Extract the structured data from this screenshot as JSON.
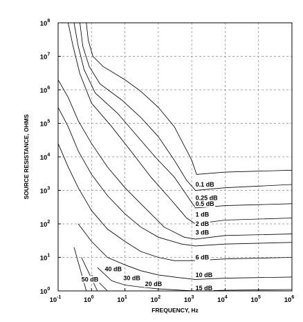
{
  "chart_data": {
    "type": "line",
    "title": "",
    "xlabel": "FREQUENCY, Hz",
    "ylabel": "SOURCE RESISTANCE, OHMS",
    "x_scale": "log",
    "y_scale": "log",
    "xlim": [
      0.1,
      1000000
    ],
    "ylim": [
      1,
      100000000
    ],
    "grid": true,
    "x_ticks": [
      {
        "base": "10",
        "exp": "-1"
      },
      {
        "base": "10",
        "exp": "0"
      },
      {
        "base": "10",
        "exp": "1"
      },
      {
        "base": "10",
        "exp": "2"
      },
      {
        "base": "10",
        "exp": "3"
      },
      {
        "base": "10",
        "exp": "4"
      },
      {
        "base": "10",
        "exp": "5"
      },
      {
        "base": "10",
        "exp": "6"
      }
    ],
    "y_ticks": [
      {
        "base": "10",
        "exp": "0"
      },
      {
        "base": "10",
        "exp": "1"
      },
      {
        "base": "10",
        "exp": "2"
      },
      {
        "base": "10",
        "exp": "3"
      },
      {
        "base": "10",
        "exp": "4"
      },
      {
        "base": "10",
        "exp": "5"
      },
      {
        "base": "10",
        "exp": "6"
      },
      {
        "base": "10",
        "exp": "7"
      },
      {
        "base": "10",
        "exp": "8"
      }
    ],
    "series": [
      {
        "name": "0.1 dB",
        "points": [
          [
            0.7,
            100000000
          ],
          [
            0.8,
            30000000
          ],
          [
            1.1,
            10000000
          ],
          [
            2.2,
            5000000
          ],
          [
            10,
            2000000
          ],
          [
            30,
            900000
          ],
          [
            100,
            300000
          ],
          [
            300,
            80000
          ],
          [
            1000,
            8000
          ],
          [
            1400,
            3000
          ],
          [
            10000,
            3500
          ],
          [
            1000000,
            4000
          ]
        ],
        "label_at": [
          1300,
          1500
        ]
      },
      {
        "name": "0.25 dB",
        "points": [
          [
            0.45,
            100000000
          ],
          [
            0.55,
            20000000
          ],
          [
            0.85,
            5000000
          ],
          [
            1.8,
            1500000
          ],
          [
            8,
            500000
          ],
          [
            30,
            150000
          ],
          [
            100,
            40000
          ],
          [
            300,
            8000
          ],
          [
            700,
            2000
          ],
          [
            1300,
            1000
          ],
          [
            10000,
            1200
          ],
          [
            1000000,
            1500
          ]
        ],
        "label_at": [
          1300,
          600
        ]
      },
      {
        "name": "0.5 dB",
        "points": [
          [
            0.3,
            100000000
          ],
          [
            0.4,
            20000000
          ],
          [
            0.6,
            4000000
          ],
          [
            1.3,
            800000
          ],
          [
            6,
            200000
          ],
          [
            20,
            50000
          ],
          [
            80,
            10000
          ],
          [
            300,
            2500
          ],
          [
            800,
            600
          ],
          [
            1300,
            300
          ],
          [
            10000,
            350
          ],
          [
            1000000,
            400
          ]
        ],
        "label_at": [
          1300,
          400
        ]
      },
      {
        "name": "1 dB",
        "points": [
          [
            0.2,
            100000000
          ],
          [
            0.28,
            20000000
          ],
          [
            0.45,
            3000000
          ],
          [
            1,
            400000
          ],
          [
            4,
            80000
          ],
          [
            15,
            15000
          ],
          [
            60,
            2500
          ],
          [
            250,
            500
          ],
          [
            700,
            150
          ],
          [
            1300,
            100
          ],
          [
            10000,
            130
          ],
          [
            1000000,
            150
          ]
        ],
        "label_at": [
          1300,
          190
        ]
      },
      {
        "name": "2 dB",
        "points": [
          [
            0.1,
            2000000
          ],
          [
            0.2,
            600000
          ],
          [
            0.4,
            120000
          ],
          [
            1,
            25000
          ],
          [
            3,
            5000
          ],
          [
            10,
            1200
          ],
          [
            40,
            300
          ],
          [
            150,
            80
          ],
          [
            600,
            40
          ],
          [
            1300,
            35
          ],
          [
            10000,
            45
          ],
          [
            1000000,
            50
          ]
        ],
        "label_at": [
          1300,
          100
        ]
      },
      {
        "name": "3 dB",
        "points": [
          [
            0.1,
            300000
          ],
          [
            0.2,
            80000
          ],
          [
            0.4,
            15000
          ],
          [
            1,
            3000
          ],
          [
            3,
            700
          ],
          [
            10,
            200
          ],
          [
            30,
            80
          ],
          [
            100,
            40
          ],
          [
            500,
            25
          ],
          [
            1300,
            22
          ],
          [
            10000,
            25
          ],
          [
            1000000,
            28
          ]
        ],
        "label_at": [
          1300,
          55
        ]
      },
      {
        "name": "6 dB",
        "points": [
          [
            0.1,
            25000
          ],
          [
            0.2,
            5000
          ],
          [
            0.4,
            1200
          ],
          [
            1,
            250
          ],
          [
            3,
            70
          ],
          [
            10,
            30
          ],
          [
            30,
            15
          ],
          [
            100,
            10
          ],
          [
            300,
            8
          ],
          [
            1300,
            8
          ],
          [
            10000,
            9
          ],
          [
            1000000,
            10
          ]
        ],
        "label_at": [
          1300,
          10
        ]
      },
      {
        "name": "10 dB",
        "points": [
          [
            0.4,
            100
          ],
          [
            1,
            30
          ],
          [
            3,
            10
          ],
          [
            10,
            6
          ],
          [
            30,
            4
          ],
          [
            100,
            3
          ],
          [
            400,
            2.5
          ],
          [
            1300,
            2.2
          ],
          [
            10000,
            2.4
          ],
          [
            1000000,
            2.6
          ]
        ],
        "label_at": [
          1300,
          3
        ]
      },
      {
        "name": "15 dB",
        "points": [
          [
            1.5,
            5
          ],
          [
            4,
            2
          ],
          [
            10,
            1.5
          ],
          [
            30,
            1.3
          ],
          [
            100,
            1.15
          ],
          [
            500,
            1.05
          ],
          [
            1500,
            1
          ],
          [
            10000,
            1.05
          ],
          [
            1000000,
            1.1
          ]
        ],
        "label_at": [
          1300,
          1.2
        ]
      },
      {
        "name": "20 dB",
        "points": [
          [
            3,
            1
          ],
          [
            10,
            1
          ],
          [
            100,
            1
          ]
        ],
        "label_at": [
          40,
          1.6
        ]
      },
      {
        "name": "30 dB",
        "points": [
          [
            1,
            3
          ],
          [
            3,
            1
          ]
        ],
        "label_at": [
          9,
          2.4
        ]
      },
      {
        "name": "40 dB",
        "points": [
          [
            0.5,
            10
          ],
          [
            1.5,
            1
          ]
        ],
        "label_at": [
          2.5,
          4.5
        ]
      },
      {
        "name": "50 dB",
        "points": [
          [
            0.3,
            20
          ],
          [
            0.7,
            1
          ]
        ],
        "label_at": [
          0.5,
          2.2
        ]
      }
    ]
  }
}
